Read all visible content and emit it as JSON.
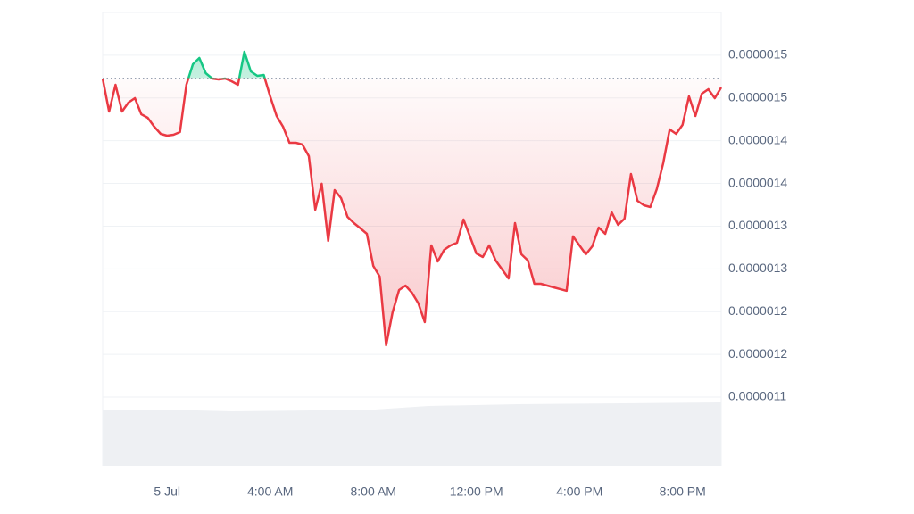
{
  "chart_data": {
    "type": "line",
    "x": [
      -2.5,
      -2.25,
      -2,
      -1.75,
      -1.5,
      -1.25,
      -1,
      -0.75,
      -0.5,
      -0.25,
      0,
      0.25,
      0.5,
      0.75,
      1,
      1.25,
      1.5,
      1.75,
      2,
      2.25,
      2.5,
      2.75,
      3,
      3.25,
      3.5,
      3.75,
      4,
      4.25,
      4.5,
      4.75,
      5,
      5.25,
      5.5,
      5.75,
      6,
      6.25,
      6.5,
      6.75,
      7,
      7.25,
      7.5,
      7.75,
      8,
      8.25,
      8.5,
      8.75,
      9,
      9.25,
      9.5,
      9.75,
      10,
      10.25,
      10.5,
      10.75,
      11,
      11.25,
      11.5,
      11.75,
      12,
      12.25,
      12.5,
      12.75,
      13,
      13.25,
      13.5,
      13.75,
      14,
      14.25,
      14.5,
      14.75,
      15,
      15.25,
      15.5,
      15.75,
      16,
      16.25,
      16.5,
      16.75,
      17,
      17.25,
      17.5,
      17.75,
      18,
      18.25,
      18.5,
      18.75,
      19,
      19.25,
      19.5,
      19.75,
      20,
      20.25,
      20.5,
      20.75,
      21,
      21.25,
      21.5
    ],
    "values": [
      1.5227e-06,
      1.4841e-06,
      1.5154e-06,
      1.4841e-06,
      1.4946e-06,
      1.4998e-06,
      1.481e-06,
      1.4768e-06,
      1.4664e-06,
      1.458e-06,
      1.4559e-06,
      1.457e-06,
      1.4601e-06,
      1.5154e-06,
      1.5394e-06,
      1.5468e-06,
      1.529e-06,
      1.5227e-06,
      1.5217e-06,
      1.5227e-06,
      1.5196e-06,
      1.5154e-06,
      1.5541e-06,
      1.5311e-06,
      1.5259e-06,
      1.5269e-06,
      1.5019e-06,
      1.4789e-06,
      1.4664e-06,
      1.4476e-06,
      1.4476e-06,
      1.4455e-06,
      1.4319e-06,
      1.3693e-06,
      1.3996e-06,
      1.3327e-06,
      1.3922e-06,
      1.3828e-06,
      1.3609e-06,
      1.3536e-06,
      1.3474e-06,
      1.3411e-06,
      1.3035e-06,
      1.291e-06,
      1.2106e-06,
      1.2492e-06,
      1.2753e-06,
      1.2805e-06,
      1.2722e-06,
      1.2597e-06,
      1.2377e-06,
      1.3275e-06,
      1.3087e-06,
      1.3223e-06,
      1.3275e-06,
      1.3306e-06,
      1.3578e-06,
      1.338e-06,
      1.3181e-06,
      1.3139e-06,
      1.3275e-06,
      1.3098e-06,
      1.2993e-06,
      1.2889e-06,
      1.3536e-06,
      1.3171e-06,
      1.3098e-06,
      1.2826e-06,
      1.2826e-06,
      1.2805e-06,
      1.2784e-06,
      1.2764e-06,
      1.2743e-06,
      1.338e-06,
      1.3275e-06,
      1.3171e-06,
      1.3265e-06,
      1.3484e-06,
      1.3411e-06,
      1.3661e-06,
      1.3515e-06,
      1.3588e-06,
      1.411e-06,
      1.3797e-06,
      1.3745e-06,
      1.3724e-06,
      1.3933e-06,
      1.4236e-06,
      1.4632e-06,
      1.458e-06,
      1.4685e-06,
      1.5019e-06,
      1.4789e-06,
      1.505e-06,
      1.5102e-06,
      1.4998e-06,
      1.5123e-06
    ],
    "baseline": 1.523e-06,
    "color_above": "#16c784",
    "color_below": "#ea3943",
    "xlim": [
      -2.5,
      21.5
    ],
    "xticks": [
      {
        "value": 0,
        "label": "5 Jul"
      },
      {
        "value": 4,
        "label": "4:00 AM"
      },
      {
        "value": 8,
        "label": "8:00 AM"
      },
      {
        "value": 12,
        "label": "12:00 PM"
      },
      {
        "value": 16,
        "label": "4:00 PM"
      },
      {
        "value": 20,
        "label": "8:00 PM"
      }
    ],
    "ylim": [
      1.15e-06,
      1.6e-06
    ],
    "yticks": [
      {
        "value": 1.15e-06,
        "label": "0.0000011"
      },
      {
        "value": 1.2e-06,
        "label": "0.0000012"
      },
      {
        "value": 1.25e-06,
        "label": "0.0000012"
      },
      {
        "value": 1.3e-06,
        "label": "0.0000013"
      },
      {
        "value": 1.35e-06,
        "label": "0.0000013"
      },
      {
        "value": 1.4e-06,
        "label": "0.0000014"
      },
      {
        "value": 1.45e-06,
        "label": "0.0000014"
      },
      {
        "value": 1.5e-06,
        "label": "0.0000015"
      },
      {
        "value": 1.55e-06,
        "label": "0.0000015"
      }
    ],
    "grid": true
  }
}
